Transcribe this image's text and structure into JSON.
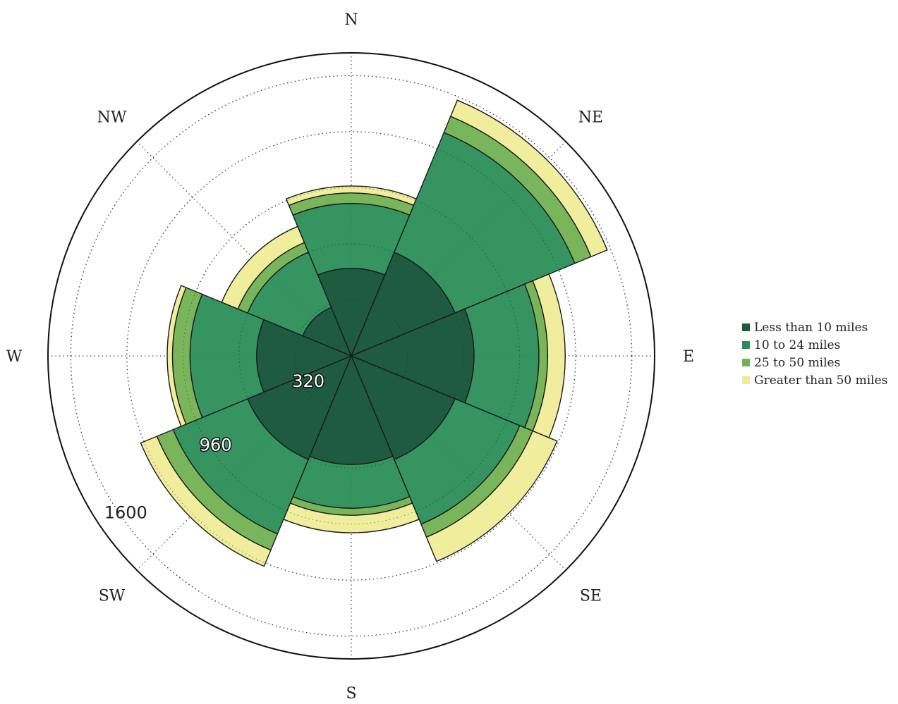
{
  "chart_data": {
    "type": "wind-rose",
    "title": "",
    "directions": [
      "N",
      "NE",
      "E",
      "SE",
      "S",
      "SW",
      "W",
      "NW"
    ],
    "series": [
      {
        "name": "Less than 10 miles",
        "color": "#1f5b40",
        "values": [
          500,
          640,
          700,
          640,
          620,
          640,
          540,
          300
        ]
      },
      {
        "name": "10 to 24 miles",
        "color": "#2b8e58",
        "values": [
          370,
          740,
          370,
          400,
          250,
          460,
          380,
          340
        ]
      },
      {
        "name": "25 to 50 miles",
        "color": "#72b252",
        "values": [
          60,
          100,
          50,
          80,
          40,
          100,
          100,
          60
        ]
      },
      {
        "name": "Greater than 50 miles",
        "color": "#efec98",
        "values": [
          40,
          100,
          100,
          150,
          100,
          100,
          30,
          100
        ]
      }
    ],
    "radial_ticks": [
      320,
      640,
      960,
      1280,
      1600
    ],
    "radial_tick_labels": [
      "320",
      "960",
      "1600"
    ],
    "rmax": 1730,
    "legend_position": "right"
  }
}
